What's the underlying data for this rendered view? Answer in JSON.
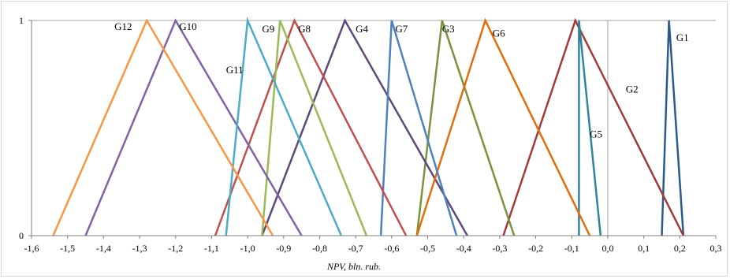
{
  "chart_data": {
    "type": "line",
    "title": "",
    "xlabel": "NPV, bln. rub.",
    "ylabel": "",
    "xlim": [
      -1.6,
      0.3
    ],
    "ylim": [
      0,
      1
    ],
    "x_ticks": [
      "-1,6",
      "-1,5",
      "-1,4",
      "-1,3",
      "-1,2",
      "-1,1",
      "-1,0",
      "-0,9",
      "-0,8",
      "-0,7",
      "-0,6",
      "-0,5",
      "-0,4",
      "-0,3",
      "-0,2",
      "-0,1",
      "0,0",
      "0,1",
      "0,2",
      "0,3"
    ],
    "y_ticks": [
      "0",
      "1"
    ],
    "grid": "horizontal line at y=1 and vertical line at x=0",
    "series": [
      {
        "name": "G1",
        "color": "#2E5A8A",
        "x": [
          0.15,
          0.17,
          0.21
        ],
        "y": [
          0,
          1,
          0
        ]
      },
      {
        "name": "G2",
        "color": "#A33A3A",
        "x": [
          -0.29,
          -0.09,
          0.21
        ],
        "y": [
          0,
          1,
          0
        ]
      },
      {
        "name": "G3",
        "color": "#77933C",
        "x": [
          -0.53,
          -0.46,
          -0.26
        ],
        "y": [
          0,
          1,
          0
        ]
      },
      {
        "name": "G4",
        "color": "#5F497A",
        "x": [
          -0.96,
          -0.73,
          -0.39
        ],
        "y": [
          0,
          1,
          0
        ]
      },
      {
        "name": "G5",
        "color": "#31849B",
        "x": [
          -0.08,
          -0.08,
          -0.02
        ],
        "y": [
          0,
          1,
          0
        ]
      },
      {
        "name": "G6",
        "color": "#E46C0A",
        "x": [
          -0.53,
          -0.34,
          -0.05
        ],
        "y": [
          0,
          1,
          0
        ]
      },
      {
        "name": "G7",
        "color": "#4F81BD",
        "x": [
          -0.63,
          -0.6,
          -0.42
        ],
        "y": [
          0,
          1,
          0
        ]
      },
      {
        "name": "G8",
        "color": "#C0504D",
        "x": [
          -1.09,
          -0.87,
          -0.56
        ],
        "y": [
          0,
          1,
          0
        ]
      },
      {
        "name": "G9",
        "color": "#9BBB59",
        "x": [
          -0.96,
          -0.91,
          -0.67
        ],
        "y": [
          0,
          1,
          0
        ]
      },
      {
        "name": "G10",
        "color": "#8064A2",
        "x": [
          -1.45,
          -1.2,
          -0.85
        ],
        "y": [
          0,
          1,
          0
        ]
      },
      {
        "name": "G11",
        "color": "#4BACC6",
        "x": [
          -1.06,
          -1.0,
          -0.74
        ],
        "y": [
          0,
          1,
          0
        ]
      },
      {
        "name": "G12",
        "color": "#F79646",
        "x": [
          -1.54,
          -1.28,
          -0.93
        ],
        "y": [
          0,
          1,
          0
        ]
      }
    ],
    "labels": [
      {
        "text": "G12",
        "x": -1.37,
        "y": 0.97
      },
      {
        "text": "G10",
        "x": -1.19,
        "y": 0.97
      },
      {
        "text": "G11",
        "x": -1.06,
        "y": 0.77
      },
      {
        "text": "G9",
        "x": -0.96,
        "y": 0.96
      },
      {
        "text": "G8",
        "x": -0.86,
        "y": 0.96
      },
      {
        "text": "G4",
        "x": -0.7,
        "y": 0.96
      },
      {
        "text": "G7",
        "x": -0.59,
        "y": 0.96
      },
      {
        "text": "G3",
        "x": -0.46,
        "y": 0.96
      },
      {
        "text": "G6",
        "x": -0.32,
        "y": 0.94
      },
      {
        "text": "G1",
        "x": 0.19,
        "y": 0.92
      },
      {
        "text": "G2",
        "x": 0.05,
        "y": 0.68
      },
      {
        "text": "G5",
        "x": -0.05,
        "y": 0.47
      }
    ]
  }
}
